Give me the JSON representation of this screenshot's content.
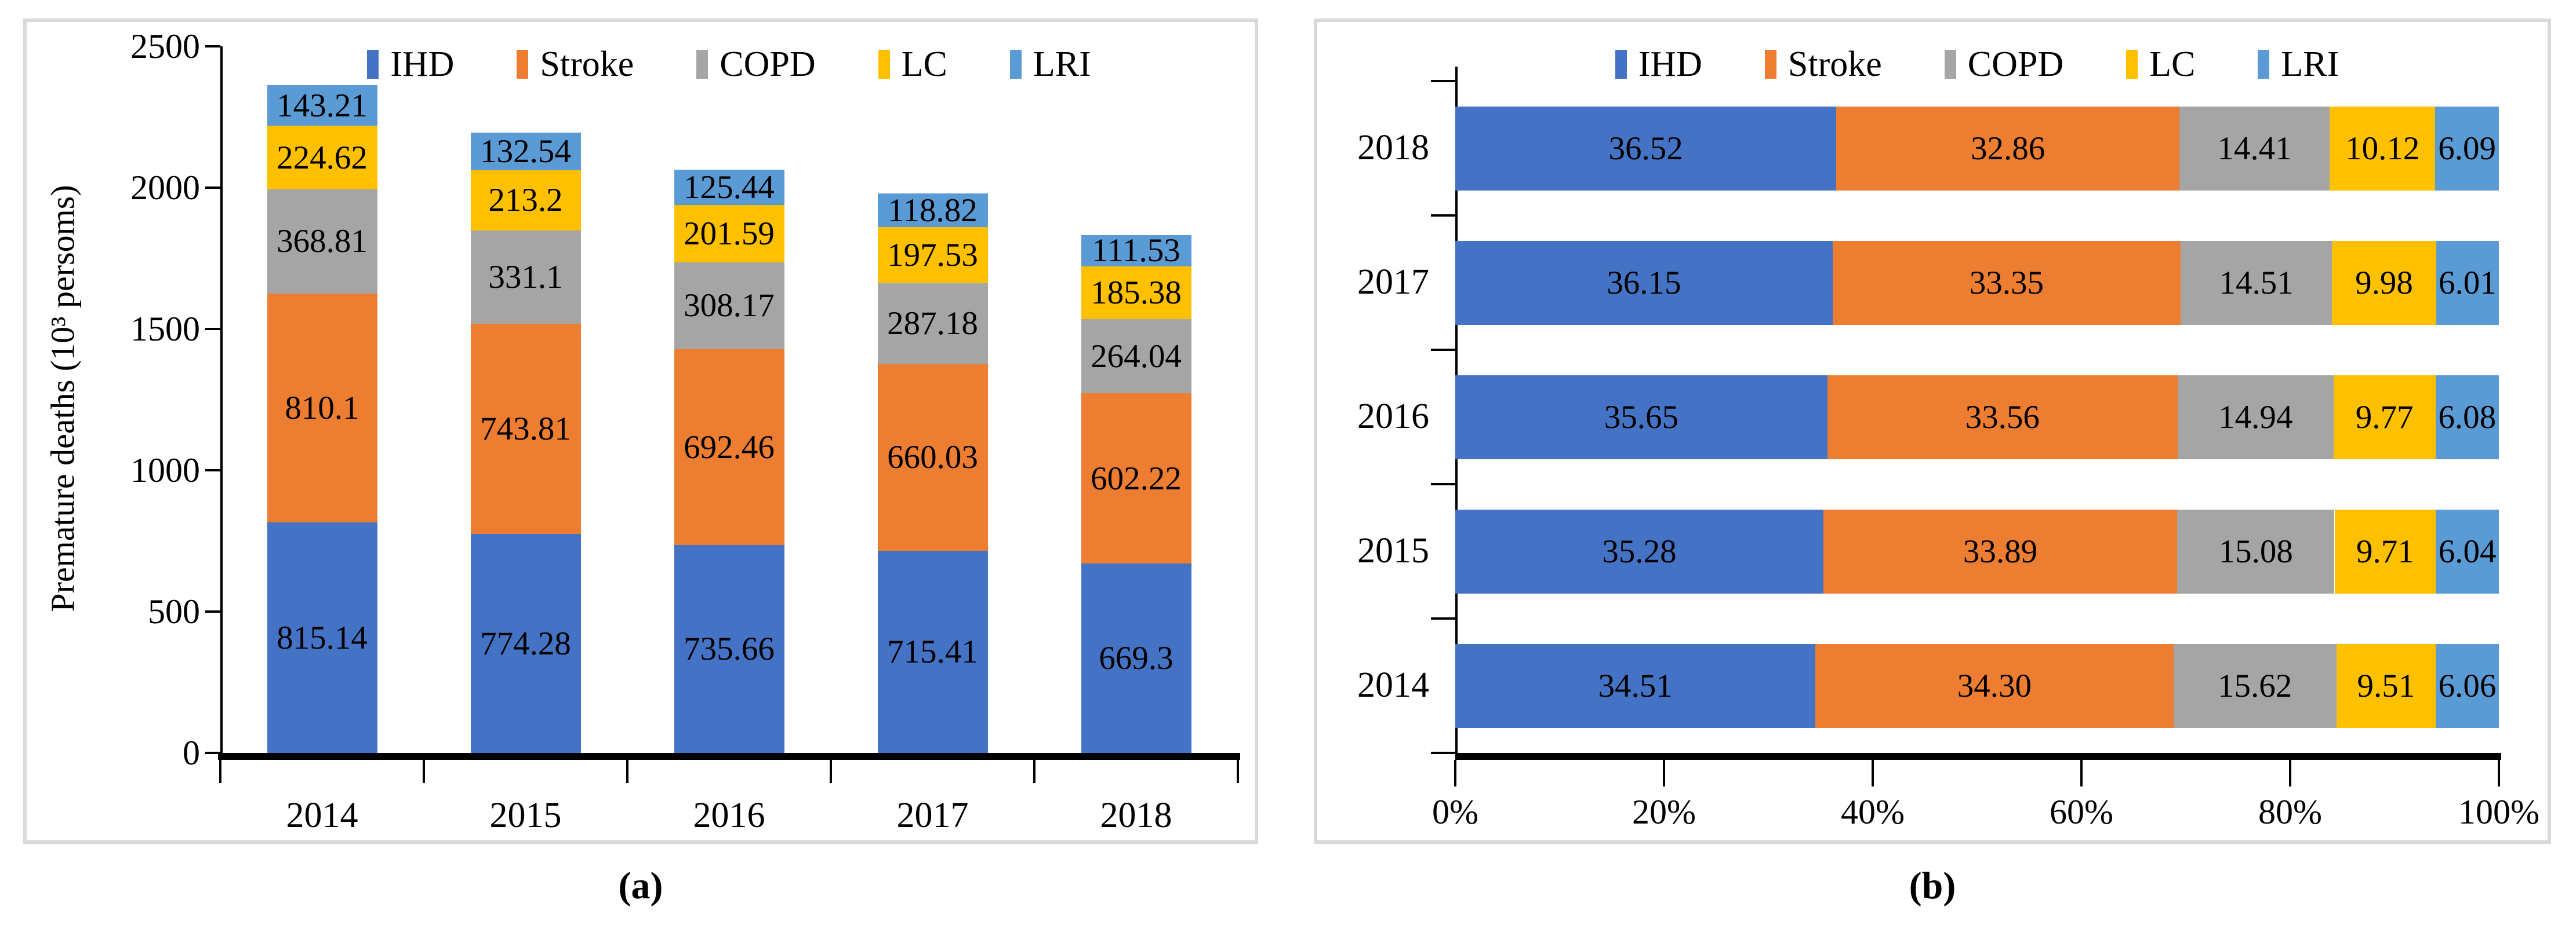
{
  "figure": {
    "panel_a_label": "(a)",
    "panel_b_label": "(b)"
  },
  "series_colors": {
    "IHD": "#4472C4",
    "Stroke": "#ED7D31",
    "COPD": "#A5A5A5",
    "LC": "#FFC000",
    "LRI": "#5B9BD5"
  },
  "panel_border_color": "#D9D9D9",
  "axis_color": "#000000",
  "chart_data": [
    {
      "id": "a",
      "type": "bar",
      "subtype": "stacked-vertical",
      "title": "",
      "xlabel": "",
      "ylabel": "Premature deaths (10³ persoms)",
      "categories": [
        "2014",
        "2015",
        "2016",
        "2017",
        "2018"
      ],
      "yticks": [
        0,
        500,
        1000,
        1500,
        2000,
        2500
      ],
      "ylim": [
        0,
        2500
      ],
      "grid": false,
      "legend_position": "top",
      "legend": [
        "IHD",
        "Stroke",
        "COPD",
        "LC",
        "LRI"
      ],
      "data_labels": true,
      "series": [
        {
          "name": "IHD",
          "values": [
            815.14,
            774.28,
            735.66,
            715.41,
            669.3
          ],
          "labels": [
            "815.14",
            "774.28",
            "735.66",
            "715.41",
            "669.3"
          ]
        },
        {
          "name": "Stroke",
          "values": [
            810.1,
            743.81,
            692.46,
            660.03,
            602.22
          ],
          "labels": [
            "810.1",
            "743.81",
            "692.46",
            "660.03",
            "602.22"
          ]
        },
        {
          "name": "COPD",
          "values": [
            368.81,
            331.1,
            308.17,
            287.18,
            264.04
          ],
          "labels": [
            "368.81",
            "331.1",
            "308.17",
            "287.18",
            "264.04"
          ]
        },
        {
          "name": "LC",
          "values": [
            224.62,
            213.2,
            201.59,
            197.53,
            185.38
          ],
          "labels": [
            "224.62",
            "213.2",
            "201.59",
            "197.53",
            "185.38"
          ]
        },
        {
          "name": "LRI",
          "values": [
            143.21,
            132.54,
            125.44,
            118.82,
            111.53
          ],
          "labels": [
            "143.21",
            "132.54",
            "125.44",
            "118.82",
            "111.53"
          ]
        }
      ]
    },
    {
      "id": "b",
      "type": "bar",
      "subtype": "stacked-horizontal-100pct",
      "title": "",
      "xlabel": "",
      "ylabel": "",
      "categories": [
        "2018",
        "2017",
        "2016",
        "2015",
        "2014"
      ],
      "xticks": [
        "0%",
        "20%",
        "40%",
        "60%",
        "80%",
        "100%"
      ],
      "xlim": [
        0,
        100
      ],
      "grid": false,
      "legend_position": "top",
      "legend": [
        "IHD",
        "Stroke",
        "COPD",
        "LC",
        "LRI"
      ],
      "data_labels": true,
      "series": [
        {
          "name": "IHD",
          "values": [
            36.52,
            36.15,
            35.65,
            35.28,
            34.51
          ],
          "labels": [
            "36.52",
            "36.15",
            "35.65",
            "35.28",
            "34.51"
          ]
        },
        {
          "name": "Stroke",
          "values": [
            32.86,
            33.35,
            33.56,
            33.89,
            34.3
          ],
          "labels": [
            "32.86",
            "33.35",
            "33.56",
            "33.89",
            "34.30"
          ]
        },
        {
          "name": "COPD",
          "values": [
            14.41,
            14.51,
            14.94,
            15.08,
            15.62
          ],
          "labels": [
            "14.41",
            "14.51",
            "14.94",
            "15.08",
            "15.62"
          ]
        },
        {
          "name": "LC",
          "values": [
            10.12,
            9.98,
            9.77,
            9.71,
            9.51
          ],
          "labels": [
            "10.12",
            "9.98",
            "9.77",
            "9.71",
            "9.51"
          ]
        },
        {
          "name": "LRI",
          "values": [
            6.09,
            6.01,
            6.08,
            6.04,
            6.06
          ],
          "labels": [
            "6.09",
            "6.01",
            "6.08",
            "6.04",
            "6.06"
          ]
        }
      ]
    }
  ]
}
